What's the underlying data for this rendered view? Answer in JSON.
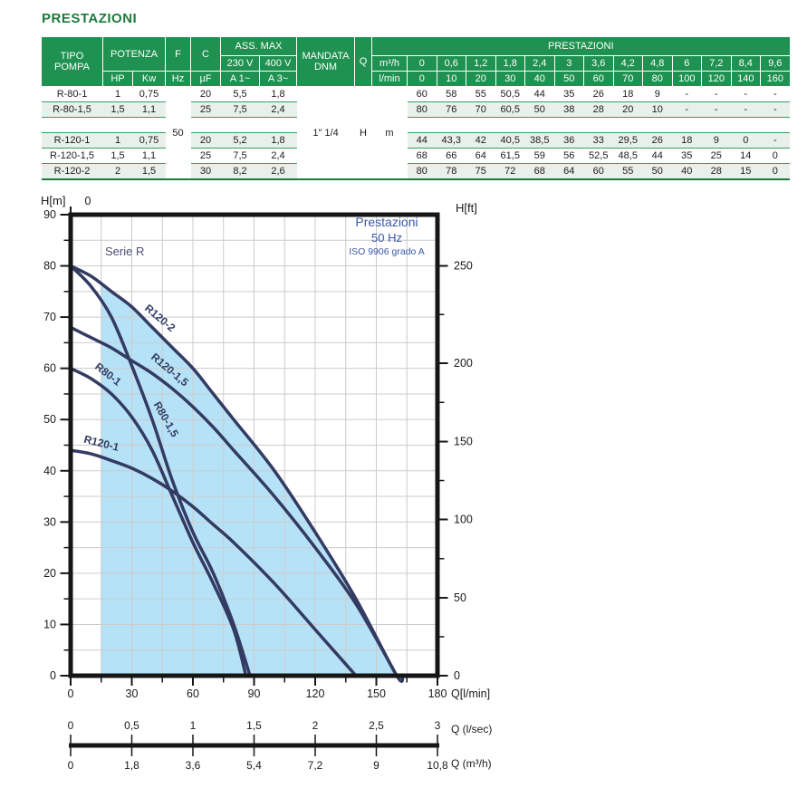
{
  "title": "PRESTAZIONI",
  "table": {
    "header": {
      "tipo_pompa": "TIPO\nPOMPA",
      "potenza": "POTENZA",
      "f": "F",
      "c": "C",
      "ass_max": "ASS. MAX",
      "v230": "230 V",
      "v400": "400 V",
      "mandata": "MANDATA\nDNM",
      "q": "Q",
      "prestazioni": "PRESTAZIONI",
      "hp": "HP",
      "kw": "Kw",
      "hz": "Hz",
      "uf": "µF",
      "a1": "A 1~",
      "a3": "A 3~",
      "m3h": "m³/h",
      "lmin": "l/min",
      "m3h_values": [
        "0",
        "0,6",
        "1,2",
        "1,8",
        "2,4",
        "3",
        "3,6",
        "4,2",
        "4,8",
        "6",
        "7,2",
        "8,4",
        "9,6"
      ],
      "lmin_values": [
        "0",
        "10",
        "20",
        "30",
        "40",
        "50",
        "60",
        "70",
        "80",
        "100",
        "120",
        "140",
        "160"
      ]
    },
    "merged": {
      "hz_value": "50",
      "mandata_value": "1\" 1/4",
      "q_value": "H",
      "unit_value": "m"
    },
    "rows": [
      {
        "tipo": "R-80-1",
        "hp": "1",
        "kw": "0,75",
        "uf": "20",
        "a1": "5,5",
        "a3": "1,8",
        "values": [
          "60",
          "58",
          "55",
          "50,5",
          "44",
          "35",
          "26",
          "18",
          "9",
          "-",
          "-",
          "-",
          "-"
        ]
      },
      {
        "tipo": "R-80-1,5",
        "hp": "1,5",
        "kw": "1,1",
        "uf": "25",
        "a1": "7,5",
        "a3": "2,4",
        "values": [
          "80",
          "76",
          "70",
          "60,5",
          "50",
          "38",
          "28",
          "20",
          "10",
          "-",
          "-",
          "-",
          "-"
        ]
      },
      {
        "tipo": "R-120-1",
        "hp": "1",
        "kw": "0,75",
        "uf": "20",
        "a1": "5,2",
        "a3": "1,8",
        "values": [
          "44",
          "43,3",
          "42",
          "40,5",
          "38,5",
          "36",
          "33",
          "29,5",
          "26",
          "18",
          "9",
          "0",
          "-"
        ]
      },
      {
        "tipo": "R-120-1,5",
        "hp": "1,5",
        "kw": "1,1",
        "uf": "25",
        "a1": "7,5",
        "a3": "2,4",
        "values": [
          "68",
          "66",
          "64",
          "61,5",
          "59",
          "56",
          "52,5",
          "48,5",
          "44",
          "35",
          "25",
          "14",
          "0"
        ]
      },
      {
        "tipo": "R-120-2",
        "hp": "2",
        "kw": "1,5",
        "uf": "30",
        "a1": "8,2",
        "a3": "2,6",
        "values": [
          "80",
          "78",
          "75",
          "72",
          "68",
          "64",
          "60",
          "55",
          "50",
          "40",
          "28",
          "15",
          "0"
        ]
      }
    ]
  },
  "chart_data": {
    "type": "line",
    "title": "Prestazioni",
    "subtitle": "50 Hz",
    "note": "ISO 9906 grado A",
    "family_label": "Serie R",
    "xlabel": "Q[l/min]",
    "ylabel_left": "H[m]",
    "ylabel_right": "H[ft]",
    "top_zero_label": "0",
    "xlim": [
      0,
      180
    ],
    "ylim": [
      0,
      90
    ],
    "x_lmin": [
      0,
      10,
      20,
      30,
      40,
      50,
      60,
      70,
      80,
      100,
      120,
      140,
      160
    ],
    "series": [
      {
        "name": "R80-1",
        "values": [
          60,
          58,
          55,
          50.5,
          44,
          35,
          26,
          18,
          9,
          null,
          null,
          null,
          null
        ],
        "end_q": 86,
        "label_q": 17.3,
        "label_h": 58.3,
        "label_rot": 38
      },
      {
        "name": "R80-1,5",
        "values": [
          80,
          76,
          70,
          60.5,
          50,
          38,
          28,
          20,
          10,
          null,
          null,
          null,
          null
        ],
        "end_q": 88,
        "label_q": 45.3,
        "label_h": 49.7,
        "label_rot": 60
      },
      {
        "name": "R120-1",
        "values": [
          44,
          43.3,
          42,
          40.5,
          38.5,
          36,
          33,
          29.5,
          26,
          18,
          9,
          0,
          null
        ],
        "end_q": 140,
        "label_q": 14.7,
        "label_h": 44.7,
        "label_rot": 14
      },
      {
        "name": "R120-1,5",
        "values": [
          68,
          66,
          64,
          61.5,
          59,
          56,
          52.5,
          48.5,
          44,
          35,
          25,
          14,
          0
        ],
        "end_q": 158,
        "label_q": 47.5,
        "label_h": 59.2,
        "label_rot": 40
      },
      {
        "name": "R120-2",
        "values": [
          80,
          78,
          75,
          72,
          68,
          64,
          60,
          55,
          50,
          40,
          28,
          15,
          0
        ],
        "end_q": 163,
        "label_q": 42.7,
        "label_h": 69.3,
        "label_rot": 40
      }
    ],
    "x_ticks": [
      0,
      30,
      60,
      90,
      120,
      150,
      180
    ],
    "x_minor_step": 15,
    "y_ticks": [
      0,
      10,
      20,
      30,
      40,
      50,
      60,
      70,
      80,
      90
    ],
    "y_minor_step": 5,
    "right_ticks": [
      {
        "label": "250",
        "h": 80
      },
      {
        "label": "200",
        "h": 61
      },
      {
        "label": "150",
        "h": 45.7
      },
      {
        "label": "100",
        "h": 30.5
      },
      {
        "label": "50",
        "h": 15.2
      },
      {
        "label": "0",
        "h": 0
      }
    ],
    "shade": {
      "series": "R120-2",
      "from_q": 15
    },
    "grid": true,
    "legend_position": "on-curve",
    "bottom_scales": {
      "lsec": {
        "label": "Q (l/sec)",
        "ticks": [
          "0",
          "0,5",
          "1",
          "1,5",
          "2",
          "2,5",
          "3"
        ]
      },
      "m3h": {
        "label": "Q (m³/h)",
        "ticks": [
          "0",
          "1,8",
          "3,6",
          "5,4",
          "7,2",
          "9",
          "10,8"
        ]
      }
    },
    "colors": {
      "curve": "#333b63",
      "shade": "#a9ddf6",
      "frame": "#161616",
      "grid": "#cccccc",
      "info_text": "#3a57a8",
      "family_text": "#4b5275",
      "tick_text": "#1a1a1a"
    }
  }
}
